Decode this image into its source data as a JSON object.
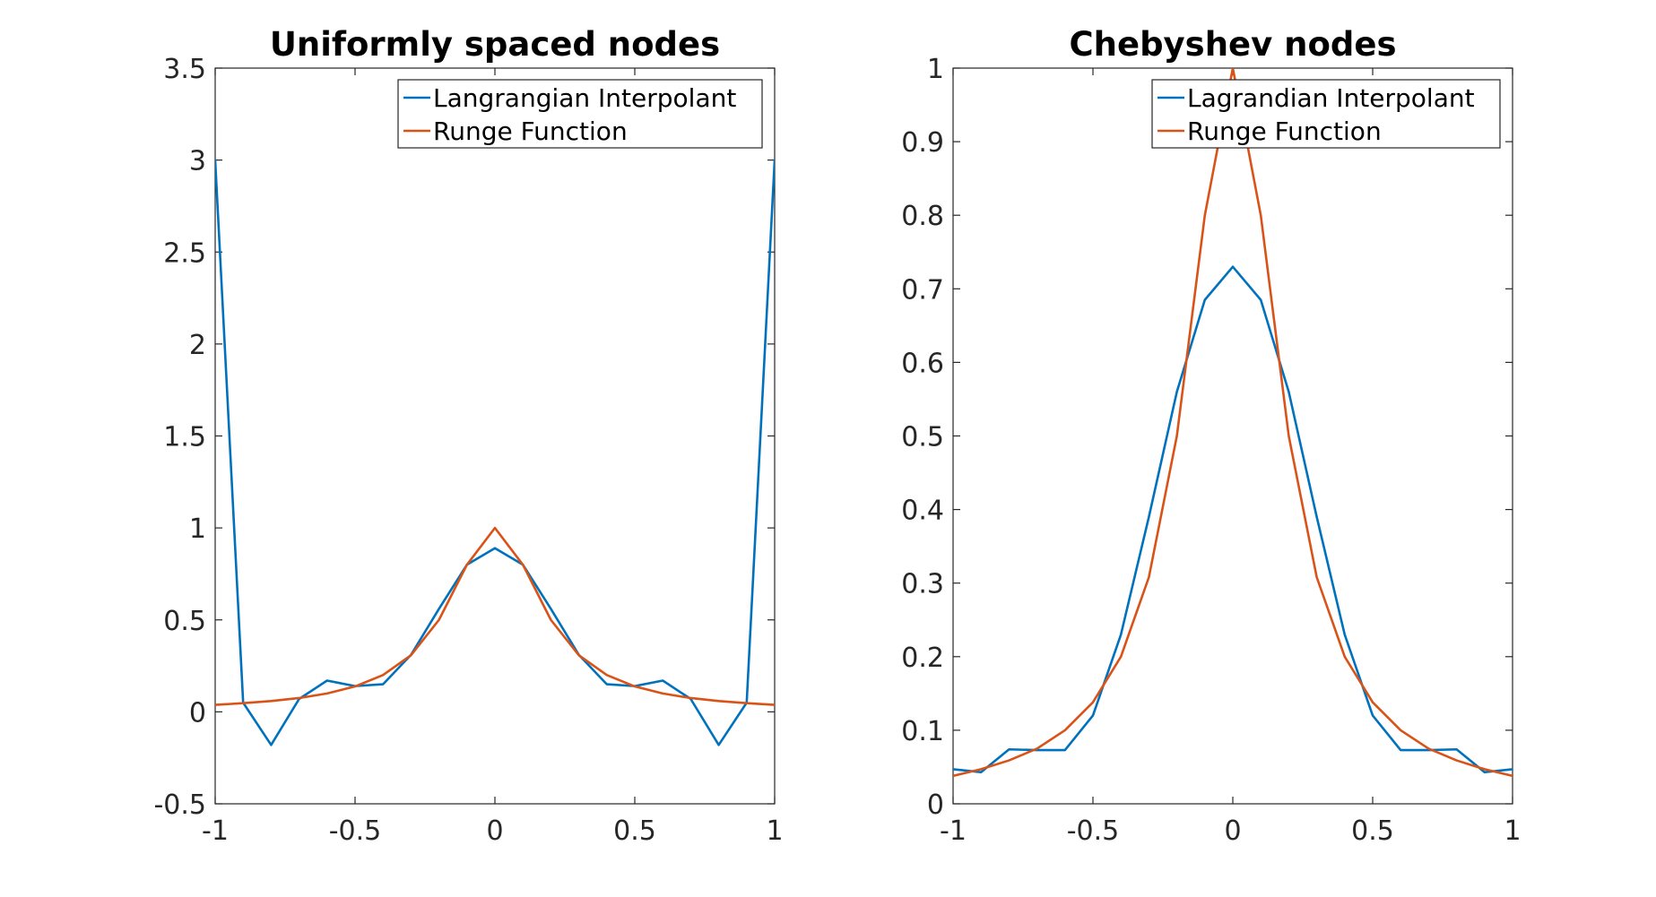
{
  "chart_data": [
    {
      "type": "line",
      "title": "Uniformly spaced nodes",
      "xlabel": "",
      "ylabel": "",
      "xlim": [
        -1,
        1
      ],
      "ylim": [
        -0.5,
        3.5
      ],
      "xticks": [
        -1,
        -0.5,
        0,
        0.5,
        1
      ],
      "xtick_labels": [
        "-1",
        "-0.5",
        "0",
        "0.5",
        "1"
      ],
      "yticks": [
        -0.5,
        0,
        0.5,
        1,
        1.5,
        2,
        2.5,
        3,
        3.5
      ],
      "ytick_labels": [
        "-0.5",
        "0",
        "0.5",
        "1",
        "1.5",
        "2",
        "2.5",
        "3",
        "3.5"
      ],
      "grid": false,
      "legend_position": "top-right",
      "x": [
        -1,
        -0.9,
        -0.8,
        -0.7,
        -0.6,
        -0.5,
        -0.4,
        -0.3,
        -0.2,
        -0.1,
        0,
        0.1,
        0.2,
        0.3,
        0.4,
        0.5,
        0.6,
        0.7,
        0.8,
        0.9,
        1
      ],
      "series": [
        {
          "name": "Langrangian Interpolant",
          "color": "#0072BD",
          "values": [
            3.0,
            0.05,
            -0.18,
            0.07,
            0.17,
            0.14,
            0.15,
            0.31,
            0.56,
            0.8,
            0.89,
            0.8,
            0.56,
            0.31,
            0.15,
            0.14,
            0.17,
            0.07,
            -0.18,
            0.05,
            3.0
          ]
        },
        {
          "name": "Runge Function",
          "color": "#D95319",
          "values": [
            0.038,
            0.047,
            0.059,
            0.075,
            0.1,
            0.138,
            0.2,
            0.308,
            0.5,
            0.8,
            1.0,
            0.8,
            0.5,
            0.308,
            0.2,
            0.138,
            0.1,
            0.075,
            0.059,
            0.047,
            0.038
          ]
        }
      ]
    },
    {
      "type": "line",
      "title": "Chebyshev nodes",
      "xlabel": "",
      "ylabel": "",
      "xlim": [
        -1,
        1
      ],
      "ylim": [
        0,
        1
      ],
      "xticks": [
        -1,
        -0.5,
        0,
        0.5,
        1
      ],
      "xtick_labels": [
        "-1",
        "-0.5",
        "0",
        "0.5",
        "1"
      ],
      "yticks": [
        0,
        0.1,
        0.2,
        0.3,
        0.4,
        0.5,
        0.6,
        0.7,
        0.8,
        0.9,
        1
      ],
      "ytick_labels": [
        "0",
        "0.1",
        "0.2",
        "0.3",
        "0.4",
        "0.5",
        "0.6",
        "0.7",
        "0.8",
        "0.9",
        "1"
      ],
      "grid": false,
      "legend_position": "top-right",
      "x": [
        -1,
        -0.9,
        -0.8,
        -0.7,
        -0.6,
        -0.5,
        -0.4,
        -0.3,
        -0.2,
        -0.1,
        0,
        0.1,
        0.2,
        0.3,
        0.4,
        0.5,
        0.6,
        0.7,
        0.8,
        0.9,
        1
      ],
      "series": [
        {
          "name": "Lagrandian Interpolant",
          "color": "#0072BD",
          "values": [
            0.047,
            0.043,
            0.074,
            0.073,
            0.073,
            0.12,
            0.23,
            0.39,
            0.56,
            0.685,
            0.73,
            0.685,
            0.56,
            0.39,
            0.23,
            0.12,
            0.073,
            0.073,
            0.074,
            0.043,
            0.047
          ]
        },
        {
          "name": "Runge Function",
          "color": "#D95319",
          "values": [
            0.038,
            0.047,
            0.059,
            0.075,
            0.1,
            0.138,
            0.2,
            0.308,
            0.5,
            0.8,
            1.0,
            0.8,
            0.5,
            0.308,
            0.2,
            0.138,
            0.1,
            0.075,
            0.059,
            0.047,
            0.038
          ]
        }
      ]
    }
  ]
}
